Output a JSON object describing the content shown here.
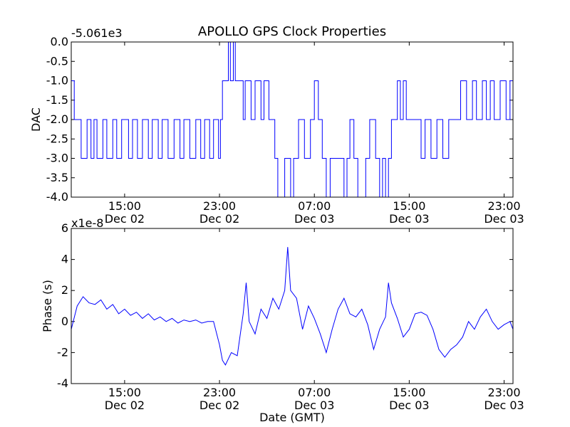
{
  "title": "APOLLO GPS Clock Properties",
  "colors": {
    "series": "#0000ff",
    "axes": "#000000",
    "background": "#ffffff"
  },
  "chart_data": [
    {
      "type": "line",
      "title": "APOLLO GPS Clock Properties",
      "ylabel": "DAC",
      "xlabel": "",
      "offset_text": "-5.061e3",
      "ylim": [
        -4.0,
        0.0
      ],
      "xlim": [
        "Dec 02 10:30",
        "Dec 03 23:45"
      ],
      "yticks": [
        "0.0",
        "-0.5",
        "-1.0",
        "-1.5",
        "-2.0",
        "-2.5",
        "-3.0",
        "-3.5",
        "-4.0"
      ],
      "xticks": [
        {
          "time": "15:00",
          "date": "Dec 02"
        },
        {
          "time": "23:00",
          "date": "Dec 02"
        },
        {
          "time": "07:00",
          "date": "Dec 03"
        },
        {
          "time": "15:00",
          "date": "Dec 03"
        },
        {
          "time": "23:00",
          "date": "Dec 03"
        }
      ],
      "series": [
        {
          "values": [
            [
              "Dec 02 10:30",
              -1.0
            ],
            [
              "Dec 02 10:45",
              -2.0
            ],
            [
              "Dec 02 11:20",
              -3.0
            ],
            [
              "Dec 02 11:50",
              -2.0
            ],
            [
              "Dec 02 12:10",
              -3.0
            ],
            [
              "Dec 02 12:25",
              -2.0
            ],
            [
              "Dec 02 12:40",
              -3.0
            ],
            [
              "Dec 02 13:10",
              -2.0
            ],
            [
              "Dec 02 13:30",
              -3.0
            ],
            [
              "Dec 02 14:00",
              -2.0
            ],
            [
              "Dec 02 14:20",
              -3.0
            ],
            [
              "Dec 02 14:45",
              -2.0
            ],
            [
              "Dec 02 15:20",
              -3.0
            ],
            [
              "Dec 02 15:40",
              -2.0
            ],
            [
              "Dec 02 16:05",
              -3.0
            ],
            [
              "Dec 02 16:30",
              -2.0
            ],
            [
              "Dec 02 17:00",
              -3.0
            ],
            [
              "Dec 02 17:20",
              -2.0
            ],
            [
              "Dec 02 17:50",
              -3.0
            ],
            [
              "Dec 02 18:10",
              -2.0
            ],
            [
              "Dec 02 18:40",
              -3.0
            ],
            [
              "Dec 02 19:10",
              -2.0
            ],
            [
              "Dec 02 19:40",
              -3.0
            ],
            [
              "Dec 02 20:00",
              -2.0
            ],
            [
              "Dec 02 20:30",
              -3.0
            ],
            [
              "Dec 02 21:00",
              -2.0
            ],
            [
              "Dec 02 21:25",
              -3.0
            ],
            [
              "Dec 02 21:45",
              -2.0
            ],
            [
              "Dec 02 22:10",
              -3.0
            ],
            [
              "Dec 02 22:30",
              -2.0
            ],
            [
              "Dec 02 22:55",
              -3.0
            ],
            [
              "Dec 02 23:05",
              -2.0
            ],
            [
              "Dec 02 23:15",
              -1.0
            ],
            [
              "Dec 02 23:45",
              0.0
            ],
            [
              "Dec 02 23:55",
              -1.0
            ],
            [
              "Dec 03 00:10",
              0.0
            ],
            [
              "Dec 03 00:20",
              -1.0
            ],
            [
              "Dec 03 01:00",
              -2.0
            ],
            [
              "Dec 03 01:10",
              -1.0
            ],
            [
              "Dec 03 01:40",
              -2.0
            ],
            [
              "Dec 03 02:00",
              -1.0
            ],
            [
              "Dec 03 02:30",
              -2.0
            ],
            [
              "Dec 03 02:45",
              -1.0
            ],
            [
              "Dec 03 03:10",
              -2.0
            ],
            [
              "Dec 03 03:40",
              -3.0
            ],
            [
              "Dec 03 03:55",
              -4.0
            ],
            [
              "Dec 03 04:30",
              -3.0
            ],
            [
              "Dec 03 05:00",
              -4.0
            ],
            [
              "Dec 03 05:15",
              -3.0
            ],
            [
              "Dec 03 05:40",
              -2.0
            ],
            [
              "Dec 03 06:10",
              -3.0
            ],
            [
              "Dec 03 06:40",
              -2.0
            ],
            [
              "Dec 03 07:00",
              -1.0
            ],
            [
              "Dec 03 07:20",
              -2.0
            ],
            [
              "Dec 03 07:40",
              -3.0
            ],
            [
              "Dec 03 08:00",
              -4.0
            ],
            [
              "Dec 03 08:20",
              -3.0
            ],
            [
              "Dec 03 09:30",
              -4.0
            ],
            [
              "Dec 03 09:45",
              -3.0
            ],
            [
              "Dec 03 10:00",
              -2.0
            ],
            [
              "Dec 03 10:20",
              -3.0
            ],
            [
              "Dec 03 10:40",
              -4.0
            ],
            [
              "Dec 03 11:20",
              -3.0
            ],
            [
              "Dec 03 11:40",
              -2.0
            ],
            [
              "Dec 03 12:10",
              -3.0
            ],
            [
              "Dec 03 12:30",
              -4.0
            ],
            [
              "Dec 03 12:45",
              -3.0
            ],
            [
              "Dec 03 13:00",
              -4.0
            ],
            [
              "Dec 03 13:15",
              -3.0
            ],
            [
              "Dec 03 13:30",
              -2.0
            ],
            [
              "Dec 03 14:00",
              -1.0
            ],
            [
              "Dec 03 14:15",
              -2.0
            ],
            [
              "Dec 03 14:30",
              -1.0
            ],
            [
              "Dec 03 14:45",
              -2.0
            ],
            [
              "Dec 03 16:00",
              -3.0
            ],
            [
              "Dec 03 16:20",
              -2.0
            ],
            [
              "Dec 03 16:50",
              -3.0
            ],
            [
              "Dec 03 17:20",
              -2.0
            ],
            [
              "Dec 03 17:50",
              -3.0
            ],
            [
              "Dec 03 18:20",
              -2.0
            ],
            [
              "Dec 03 19:20",
              -1.0
            ],
            [
              "Dec 03 19:50",
              -2.0
            ],
            [
              "Dec 03 20:20",
              -1.0
            ],
            [
              "Dec 03 20:40",
              -2.0
            ],
            [
              "Dec 03 21:10",
              -1.0
            ],
            [
              "Dec 03 21:30",
              -2.0
            ],
            [
              "Dec 03 21:50",
              -1.0
            ],
            [
              "Dec 03 22:10",
              -2.0
            ],
            [
              "Dec 03 22:40",
              -1.0
            ],
            [
              "Dec 03 23:10",
              -2.0
            ],
            [
              "Dec 03 23:30",
              -1.0
            ],
            [
              "Dec 03 23:45",
              -1.0
            ]
          ]
        }
      ]
    },
    {
      "type": "line",
      "title": "",
      "ylabel": "Phase (s)",
      "xlabel": "Date (GMT)",
      "offset_text": "x1e-8",
      "ylim": [
        -4,
        6
      ],
      "xlim": [
        "Dec 02 10:30",
        "Dec 03 23:45"
      ],
      "yticks": [
        "6",
        "4",
        "2",
        "0",
        "-2",
        "-4"
      ],
      "xticks": [
        {
          "time": "15:00",
          "date": "Dec 02"
        },
        {
          "time": "23:00",
          "date": "Dec 02"
        },
        {
          "time": "07:00",
          "date": "Dec 03"
        },
        {
          "time": "15:00",
          "date": "Dec 03"
        },
        {
          "time": "23:00",
          "date": "Dec 03"
        }
      ],
      "series": [
        {
          "values": [
            [
              "Dec 02 10:30",
              -0.5
            ],
            [
              "Dec 02 11:00",
              1.0
            ],
            [
              "Dec 02 11:30",
              1.6
            ],
            [
              "Dec 02 12:00",
              1.2
            ],
            [
              "Dec 02 12:30",
              1.1
            ],
            [
              "Dec 02 13:00",
              1.4
            ],
            [
              "Dec 02 13:30",
              0.8
            ],
            [
              "Dec 02 14:00",
              1.1
            ],
            [
              "Dec 02 14:30",
              0.5
            ],
            [
              "Dec 02 15:00",
              0.8
            ],
            [
              "Dec 02 15:30",
              0.4
            ],
            [
              "Dec 02 16:00",
              0.6
            ],
            [
              "Dec 02 16:30",
              0.2
            ],
            [
              "Dec 02 17:00",
              0.5
            ],
            [
              "Dec 02 17:30",
              0.1
            ],
            [
              "Dec 02 18:00",
              0.3
            ],
            [
              "Dec 02 18:30",
              0.0
            ],
            [
              "Dec 02 19:00",
              0.2
            ],
            [
              "Dec 02 19:30",
              -0.1
            ],
            [
              "Dec 02 20:00",
              0.1
            ],
            [
              "Dec 02 20:30",
              0.0
            ],
            [
              "Dec 02 21:00",
              0.1
            ],
            [
              "Dec 02 21:30",
              -0.1
            ],
            [
              "Dec 02 22:00",
              0.0
            ],
            [
              "Dec 02 22:30",
              0.0
            ],
            [
              "Dec 02 23:00",
              -1.5
            ],
            [
              "Dec 02 23:15",
              -2.5
            ],
            [
              "Dec 02 23:30",
              -2.8
            ],
            [
              "Dec 02 24:00",
              -2.0
            ],
            [
              "Dec 03 00:30",
              -2.2
            ],
            [
              "Dec 03 01:00",
              0.5
            ],
            [
              "Dec 03 01:15",
              2.5
            ],
            [
              "Dec 03 01:30",
              0.0
            ],
            [
              "Dec 03 02:00",
              -0.8
            ],
            [
              "Dec 03 02:30",
              0.8
            ],
            [
              "Dec 03 03:00",
              0.2
            ],
            [
              "Dec 03 03:30",
              1.5
            ],
            [
              "Dec 03 04:00",
              0.8
            ],
            [
              "Dec 03 04:30",
              2.0
            ],
            [
              "Dec 03 04:45",
              4.8
            ],
            [
              "Dec 03 05:00",
              2.0
            ],
            [
              "Dec 03 05:30",
              1.5
            ],
            [
              "Dec 03 06:00",
              -0.5
            ],
            [
              "Dec 03 06:30",
              1.0
            ],
            [
              "Dec 03 07:00",
              0.2
            ],
            [
              "Dec 03 07:30",
              -0.8
            ],
            [
              "Dec 03 08:00",
              -2.0
            ],
            [
              "Dec 03 08:30",
              -0.5
            ],
            [
              "Dec 03 09:00",
              0.8
            ],
            [
              "Dec 03 09:30",
              1.5
            ],
            [
              "Dec 03 10:00",
              0.5
            ],
            [
              "Dec 03 10:30",
              0.3
            ],
            [
              "Dec 03 11:00",
              0.8
            ],
            [
              "Dec 03 11:30",
              -0.2
            ],
            [
              "Dec 03 12:00",
              -1.8
            ],
            [
              "Dec 03 12:30",
              -0.5
            ],
            [
              "Dec 03 13:00",
              0.3
            ],
            [
              "Dec 03 13:15",
              2.5
            ],
            [
              "Dec 03 13:30",
              1.2
            ],
            [
              "Dec 03 14:00",
              0.2
            ],
            [
              "Dec 03 14:30",
              -1.0
            ],
            [
              "Dec 03 15:00",
              -0.5
            ],
            [
              "Dec 03 15:30",
              0.5
            ],
            [
              "Dec 03 16:00",
              0.6
            ],
            [
              "Dec 03 16:30",
              0.4
            ],
            [
              "Dec 03 17:00",
              -0.5
            ],
            [
              "Dec 03 17:30",
              -1.8
            ],
            [
              "Dec 03 18:00",
              -2.3
            ],
            [
              "Dec 03 18:30",
              -1.8
            ],
            [
              "Dec 03 19:00",
              -1.5
            ],
            [
              "Dec 03 19:30",
              -1.0
            ],
            [
              "Dec 03 20:00",
              0.0
            ],
            [
              "Dec 03 20:30",
              -0.5
            ],
            [
              "Dec 03 21:00",
              0.3
            ],
            [
              "Dec 03 21:30",
              0.8
            ],
            [
              "Dec 03 22:00",
              0.0
            ],
            [
              "Dec 03 22:30",
              -0.5
            ],
            [
              "Dec 03 23:00",
              -0.2
            ],
            [
              "Dec 03 23:30",
              0.0
            ],
            [
              "Dec 03 23:45",
              -0.5
            ]
          ]
        }
      ]
    }
  ]
}
